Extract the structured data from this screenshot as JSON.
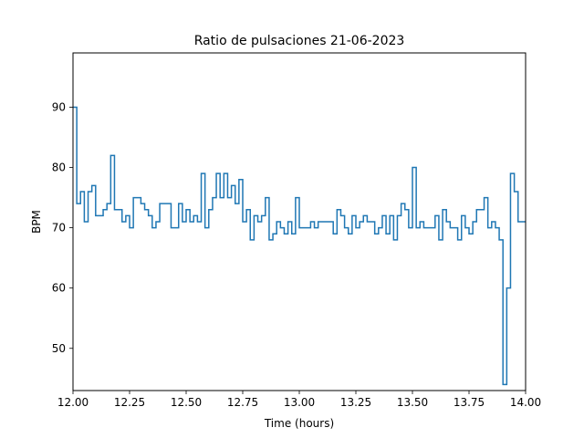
{
  "chart_data": {
    "type": "line",
    "drawstyle": "steps-post",
    "title": "Ratio de pulsaciones 21-06-2023",
    "xlabel": "Time (hours)",
    "ylabel": "BPM",
    "xlim": [
      12.0,
      14.0
    ],
    "ylim": [
      43,
      99
    ],
    "xticks": [
      12.0,
      12.25,
      12.5,
      12.75,
      13.0,
      13.25,
      13.5,
      13.75,
      14.0
    ],
    "xtick_labels": [
      "12.00",
      "12.25",
      "12.50",
      "12.75",
      "13.00",
      "13.25",
      "13.50",
      "13.75",
      "14.00"
    ],
    "yticks": [
      50,
      60,
      70,
      80,
      90
    ],
    "ytick_labels": [
      "50",
      "60",
      "70",
      "80",
      "90"
    ],
    "grid": false,
    "line_color": "#1f77b4",
    "series": [
      {
        "x": [
          12.0,
          12.0167,
          12.0333,
          12.05,
          12.0667,
          12.0833,
          12.1,
          12.1167,
          12.1333,
          12.15,
          12.1667,
          12.1833,
          12.2,
          12.2167,
          12.2333,
          12.25,
          12.2667,
          12.2833,
          12.3,
          12.3167,
          12.3333,
          12.35,
          12.3667,
          12.3833,
          12.4,
          12.4167,
          12.4333,
          12.45,
          12.4667,
          12.4833,
          12.5,
          12.5167,
          12.5333,
          12.55,
          12.5667,
          12.5833,
          12.6,
          12.6167,
          12.6333,
          12.65,
          12.6667,
          12.6833,
          12.7,
          12.7167,
          12.7333,
          12.75,
          12.7667,
          12.7833,
          12.8,
          12.8167,
          12.8333,
          12.85,
          12.8667,
          12.8833,
          12.9,
          12.9167,
          12.9333,
          12.95,
          12.9667,
          12.9833,
          13.0,
          13.0167,
          13.0333,
          13.05,
          13.0667,
          13.0833,
          13.1,
          13.1167,
          13.1333,
          13.15,
          13.1667,
          13.1833,
          13.2,
          13.2167,
          13.2333,
          13.25,
          13.2667,
          13.2833,
          13.3,
          13.3167,
          13.3333,
          13.35,
          13.3667,
          13.3833,
          13.4,
          13.4167,
          13.4333,
          13.45,
          13.4667,
          13.4833,
          13.5,
          13.5167,
          13.5333,
          13.55,
          13.5667,
          13.5833,
          13.6,
          13.6167,
          13.6333,
          13.65,
          13.6667,
          13.6833,
          13.7,
          13.7167,
          13.7333,
          13.75,
          13.7667,
          13.7833,
          13.8,
          13.8167,
          13.8333,
          13.85,
          13.8667,
          13.8833,
          13.9,
          13.9167,
          13.9333,
          13.95,
          13.9667,
          13.9833,
          14.0
        ],
        "y": [
          90,
          74,
          76,
          71,
          76,
          77,
          72,
          72,
          73,
          74,
          82,
          73,
          73,
          71,
          72,
          70,
          75,
          75,
          74,
          73,
          72,
          70,
          71,
          74,
          74,
          74,
          70,
          70,
          74,
          71,
          73,
          71,
          72,
          71,
          79,
          70,
          73,
          75,
          79,
          75,
          79,
          75,
          77,
          74,
          78,
          71,
          73,
          68,
          72,
          71,
          72,
          75,
          68,
          69,
          71,
          70,
          69,
          71,
          69,
          75,
          70,
          70,
          70,
          71,
          70,
          71,
          71,
          71,
          71,
          69,
          73,
          72,
          70,
          69,
          72,
          70,
          71,
          72,
          71,
          71,
          69,
          70,
          72,
          69,
          72,
          68,
          72,
          74,
          73,
          70,
          80,
          70,
          71,
          70,
          70,
          70,
          72,
          68,
          73,
          71,
          70,
          70,
          68,
          72,
          70,
          69,
          71,
          73,
          73,
          75,
          70,
          71,
          70,
          68,
          44,
          60,
          79,
          76,
          71,
          71,
          71
        ]
      }
    ]
  }
}
